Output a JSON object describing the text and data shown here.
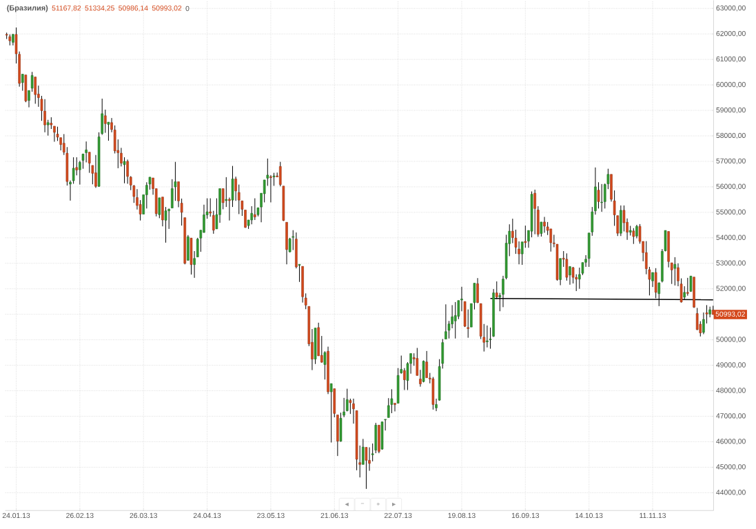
{
  "chart_data": {
    "type": "candlestick",
    "title": "(Бразилия)",
    "annotations": [
      "51167,82",
      "51334,25",
      "50986,14",
      "50993,02",
      "0",
      "50993,02",
      "◄",
      "−",
      "+",
      "►"
    ],
    "categories": [
      null,
      null,
      null,
      "24.01.13",
      null,
      null,
      null,
      null,
      null,
      null,
      null,
      null,
      null,
      null,
      null,
      null,
      null,
      null,
      null,
      null,
      null,
      null,
      null,
      "26.02.13",
      null,
      null,
      null,
      null,
      null,
      null,
      null,
      null,
      null,
      null,
      null,
      null,
      null,
      null,
      null,
      null,
      null,
      null,
      null,
      "26.03.13",
      null,
      null,
      null,
      null,
      null,
      null,
      null,
      null,
      null,
      null,
      null,
      null,
      null,
      null,
      null,
      null,
      null,
      null,
      null,
      "24.04.13",
      null,
      null,
      null,
      null,
      null,
      null,
      null,
      null,
      null,
      null,
      null,
      null,
      null,
      null,
      null,
      null,
      null,
      null,
      null,
      "23.05.13",
      null,
      null,
      null,
      null,
      null,
      null,
      null,
      null,
      null,
      null,
      null,
      null,
      null,
      null,
      null,
      null,
      null,
      null,
      null,
      "21.06.13",
      null,
      null,
      null,
      null,
      null,
      null,
      null,
      null,
      null,
      null,
      null,
      null,
      null,
      null,
      null,
      null,
      null,
      null,
      null,
      "22.07.13",
      null,
      null,
      null,
      null,
      null,
      null,
      null,
      null,
      null,
      null,
      null,
      null,
      null,
      null,
      null,
      null,
      null,
      null,
      null,
      "19.08.13",
      null,
      null,
      null,
      null,
      null,
      null,
      null,
      null,
      null,
      null,
      null,
      null,
      null,
      null,
      null,
      null,
      null,
      null,
      null,
      "16.09.13",
      null,
      null,
      null,
      null,
      null,
      null,
      null,
      null,
      null,
      null,
      null,
      null,
      null,
      null,
      null,
      null,
      null,
      null,
      null,
      "14.10.13",
      null,
      null,
      null,
      null,
      null,
      null,
      null,
      null,
      null,
      null,
      null,
      null,
      null,
      null,
      null,
      null,
      null,
      null,
      null,
      "11.11.13",
      null,
      null,
      null,
      null,
      null,
      null,
      null,
      null,
      null,
      null,
      null,
      null,
      null,
      null,
      null,
      null,
      null,
      null,
      null
    ],
    "ohlc": [
      [
        61980,
        62050,
        61800,
        61950
      ],
      [
        61890,
        61980,
        61550,
        61730
      ],
      [
        61670,
        62000,
        61550,
        61980
      ],
      [
        61980,
        62250,
        60840,
        61220
      ],
      [
        61200,
        61310,
        59930,
        60060
      ],
      [
        60090,
        60420,
        59770,
        60420
      ],
      [
        60390,
        60390,
        59320,
        59370
      ],
      [
        59390,
        59780,
        59120,
        59780
      ],
      [
        59870,
        60510,
        59730,
        60370
      ],
      [
        60310,
        60310,
        59260,
        59620
      ],
      [
        59640,
        59970,
        59140,
        59500
      ],
      [
        59440,
        59570,
        58590,
        58990
      ],
      [
        58970,
        59440,
        58140,
        58430
      ],
      [
        58430,
        58630,
        58010,
        58520
      ],
      [
        58500,
        58730,
        58270,
        58430
      ],
      [
        58380,
        58380,
        57770,
        58140
      ],
      [
        58070,
        58360,
        57800,
        57950
      ],
      [
        57930,
        57930,
        57430,
        57660
      ],
      [
        57710,
        58070,
        57250,
        57360
      ],
      [
        57320,
        57560,
        56050,
        56210
      ],
      [
        56110,
        56250,
        55460,
        56180
      ],
      [
        56240,
        57160,
        56120,
        56730
      ],
      [
        56760,
        57160,
        56450,
        56660
      ],
      [
        56670,
        57020,
        56090,
        56960
      ],
      [
        57040,
        57290,
        56710,
        57290
      ],
      [
        57340,
        57780,
        56960,
        57450
      ],
      [
        57360,
        57360,
        56550,
        56930
      ],
      [
        56840,
        56840,
        56100,
        56530
      ],
      [
        56550,
        57250,
        55960,
        56020
      ],
      [
        56020,
        58140,
        56000,
        57960
      ],
      [
        58090,
        59460,
        58040,
        58870
      ],
      [
        58790,
        59030,
        58120,
        58480
      ],
      [
        58450,
        58540,
        57810,
        58540
      ],
      [
        58520,
        58700,
        58140,
        58250
      ],
      [
        58230,
        58410,
        57310,
        57410
      ],
      [
        57430,
        57860,
        56730,
        57340
      ],
      [
        57320,
        57530,
        56800,
        56930
      ],
      [
        56870,
        57160,
        56140,
        57000
      ],
      [
        57000,
        57070,
        56120,
        56410
      ],
      [
        56380,
        56420,
        55870,
        56070
      ],
      [
        56040,
        56070,
        55370,
        55620
      ],
      [
        55580,
        55910,
        55110,
        55270
      ],
      [
        55310,
        55480,
        54680,
        54930
      ],
      [
        54930,
        55690,
        54930,
        55690
      ],
      [
        55690,
        56180,
        55150,
        56060
      ],
      [
        56110,
        56380,
        55890,
        56380
      ],
      [
        56350,
        56350,
        55690,
        55930
      ],
      [
        55930,
        55930,
        54840,
        54950
      ],
      [
        54910,
        55570,
        54770,
        55570
      ],
      [
        55600,
        55600,
        54450,
        54700
      ],
      [
        54690,
        55210,
        53810,
        55060
      ],
      [
        55060,
        55150,
        54350,
        55120
      ],
      [
        55170,
        56300,
        55170,
        55930
      ],
      [
        56000,
        56980,
        55450,
        56200
      ],
      [
        56200,
        56200,
        55200,
        55450
      ],
      [
        55360,
        55540,
        54480,
        55000
      ],
      [
        54790,
        54790,
        52960,
        53000
      ],
      [
        53120,
        54110,
        53100,
        54040
      ],
      [
        53990,
        53990,
        52560,
        52950
      ],
      [
        52950,
        53480,
        52430,
        53190
      ],
      [
        53250,
        54000,
        53250,
        53950
      ],
      [
        53990,
        54300,
        53450,
        54300
      ],
      [
        54210,
        55300,
        54200,
        54900
      ],
      [
        54900,
        55550,
        54750,
        55020
      ],
      [
        55020,
        55550,
        54830,
        54970
      ],
      [
        54880,
        55060,
        54160,
        54300
      ],
      [
        54350,
        55550,
        54350,
        54910
      ],
      [
        54910,
        55930,
        54590,
        55930
      ],
      [
        55930,
        55930,
        55120,
        55380
      ],
      [
        55460,
        56380,
        55210,
        55510
      ],
      [
        55510,
        55580,
        54680,
        55460
      ],
      [
        55480,
        56820,
        55210,
        56310
      ],
      [
        56310,
        56400,
        55450,
        55840
      ],
      [
        55780,
        56090,
        54930,
        55480
      ],
      [
        55450,
        55450,
        54860,
        55120
      ],
      [
        55090,
        55090,
        54390,
        54410
      ],
      [
        54480,
        54700,
        54350,
        54700
      ],
      [
        54700,
        55240,
        54530,
        54960
      ],
      [
        54910,
        55550,
        54700,
        54820
      ],
      [
        54910,
        55180,
        54840,
        55180
      ],
      [
        55210,
        55750,
        54610,
        55750
      ],
      [
        55730,
        56270,
        55390,
        56270
      ],
      [
        56340,
        57110,
        56040,
        56460
      ],
      [
        56400,
        56460,
        55390,
        56360
      ],
      [
        56390,
        56550,
        56040,
        56430
      ],
      [
        56430,
        56560,
        56390,
        56390
      ],
      [
        56800,
        56980,
        56020,
        56090
      ],
      [
        56030,
        56030,
        54660,
        54680
      ],
      [
        54610,
        54610,
        52960,
        53540
      ],
      [
        53450,
        54000,
        53430,
        53960
      ],
      [
        54020,
        54300,
        53520,
        54050
      ],
      [
        53950,
        54210,
        52800,
        52860
      ],
      [
        52920,
        52960,
        52270,
        52960
      ],
      [
        52880,
        52880,
        51460,
        51690
      ],
      [
        51640,
        51820,
        51200,
        51360
      ],
      [
        51310,
        51310,
        49750,
        49840
      ],
      [
        49900,
        50420,
        48810,
        49240
      ],
      [
        49240,
        50460,
        49050,
        50460
      ],
      [
        50480,
        50670,
        49370,
        49370
      ],
      [
        49390,
        50150,
        49100,
        49120
      ],
      [
        49030,
        49550,
        48440,
        49500
      ],
      [
        49550,
        49730,
        47870,
        47960
      ],
      [
        47960,
        48280,
        45970,
        48280
      ],
      [
        48080,
        48080,
        46960,
        47110
      ],
      [
        47050,
        47050,
        45440,
        46020
      ],
      [
        46020,
        47140,
        46000,
        46920
      ],
      [
        47040,
        47720,
        46960,
        47170
      ],
      [
        47220,
        48080,
        47190,
        47650
      ],
      [
        47620,
        47690,
        47090,
        47530
      ],
      [
        47490,
        47690,
        46710,
        47290
      ],
      [
        47220,
        47220,
        44880,
        45310
      ],
      [
        45180,
        45850,
        44600,
        45110
      ],
      [
        45110,
        46110,
        45110,
        45790
      ],
      [
        45780,
        45780,
        44150,
        45270
      ],
      [
        45270,
        45780,
        44860,
        45150
      ],
      [
        45490,
        45930,
        45230,
        45530
      ],
      [
        45670,
        46740,
        45550,
        46650
      ],
      [
        46650,
        46650,
        45550,
        45620
      ],
      [
        45710,
        46780,
        45690,
        46780
      ],
      [
        46860,
        46880,
        46440,
        46880
      ],
      [
        46950,
        47710,
        46950,
        47420
      ],
      [
        47460,
        48060,
        47120,
        47690
      ],
      [
        47510,
        47510,
        47190,
        47460
      ],
      [
        47510,
        48890,
        47510,
        48600
      ],
      [
        48700,
        49380,
        48670,
        48840
      ],
      [
        48790,
        48890,
        48030,
        48430
      ],
      [
        48400,
        49120,
        48030,
        49070
      ],
      [
        49070,
        49460,
        48670,
        49460
      ],
      [
        49300,
        49470,
        48980,
        49250
      ],
      [
        49270,
        49680,
        48600,
        48600
      ],
      [
        48460,
        48820,
        48160,
        48270
      ],
      [
        48360,
        49190,
        48330,
        49160
      ],
      [
        49130,
        49560,
        48510,
        48510
      ],
      [
        48500,
        48700,
        48290,
        48460
      ],
      [
        48470,
        48540,
        47260,
        47460
      ],
      [
        47330,
        47690,
        47200,
        47460
      ],
      [
        47630,
        49240,
        47610,
        48950
      ],
      [
        49070,
        50030,
        48870,
        49890
      ],
      [
        50030,
        51390,
        50030,
        50320
      ],
      [
        50370,
        50740,
        50050,
        50620
      ],
      [
        50620,
        51360,
        50450,
        50900
      ],
      [
        50740,
        51480,
        50050,
        50950
      ],
      [
        50920,
        51540,
        50810,
        51540
      ],
      [
        51560,
        52080,
        51120,
        51600
      ],
      [
        51500,
        51500,
        50500,
        50530
      ],
      [
        50480,
        51190,
        50080,
        50440
      ],
      [
        50500,
        51420,
        50500,
        51420
      ],
      [
        51460,
        52220,
        51190,
        52220
      ],
      [
        52200,
        52420,
        51440,
        51460
      ],
      [
        51420,
        51420,
        50030,
        50140
      ],
      [
        50100,
        50620,
        49540,
        49900
      ],
      [
        49920,
        50560,
        49700,
        49960
      ],
      [
        50000,
        50480,
        49650,
        50030
      ],
      [
        50140,
        51990,
        50110,
        51840
      ],
      [
        51840,
        52290,
        51600,
        51680
      ],
      [
        51680,
        51840,
        51120,
        51740
      ],
      [
        51780,
        52510,
        51280,
        52380
      ],
      [
        52430,
        54120,
        52370,
        53790
      ],
      [
        53770,
        54530,
        53280,
        54260
      ],
      [
        54260,
        54750,
        53790,
        54010
      ],
      [
        53990,
        54320,
        53370,
        53630
      ],
      [
        53560,
        53860,
        52960,
        53370
      ],
      [
        53370,
        53840,
        52940,
        53840
      ],
      [
        53860,
        54480,
        53610,
        53810
      ],
      [
        53870,
        54290,
        53610,
        54290
      ],
      [
        54260,
        55820,
        54020,
        55710
      ],
      [
        55750,
        55890,
        54140,
        55150
      ],
      [
        55090,
        55240,
        54040,
        54140
      ],
      [
        54170,
        54620,
        54050,
        54620
      ],
      [
        54620,
        54820,
        54200,
        54460
      ],
      [
        54430,
        54620,
        54110,
        54290
      ],
      [
        54350,
        54350,
        53460,
        53810
      ],
      [
        53800,
        54120,
        53630,
        53770
      ],
      [
        53750,
        53750,
        52320,
        52360
      ],
      [
        52360,
        53190,
        52140,
        53190
      ],
      [
        53200,
        53480,
        52860,
        53160
      ],
      [
        53160,
        53390,
        52320,
        52450
      ],
      [
        52540,
        52890,
        52160,
        52870
      ],
      [
        52830,
        52860,
        52210,
        52450
      ],
      [
        52450,
        52570,
        51910,
        52380
      ],
      [
        52380,
        52830,
        52000,
        52560
      ],
      [
        52610,
        53030,
        52540,
        53030
      ],
      [
        53040,
        53320,
        52860,
        53160
      ],
      [
        53190,
        54190,
        52860,
        54190
      ],
      [
        54230,
        55210,
        54080,
        55020
      ],
      [
        55060,
        56760,
        54910,
        56000
      ],
      [
        55870,
        56180,
        55150,
        55420
      ],
      [
        55380,
        56110,
        55020,
        55400
      ],
      [
        55420,
        56130,
        55150,
        56090
      ],
      [
        56120,
        56710,
        55910,
        56490
      ],
      [
        56490,
        56490,
        55420,
        55510
      ],
      [
        55450,
        55860,
        54470,
        54900
      ],
      [
        54870,
        54870,
        54070,
        54180
      ],
      [
        54180,
        55270,
        54070,
        55080
      ],
      [
        55080,
        55270,
        54250,
        54590
      ],
      [
        54610,
        54760,
        53920,
        54220
      ],
      [
        54220,
        54470,
        54090,
        54290
      ],
      [
        54270,
        54380,
        53760,
        54050
      ],
      [
        54070,
        54510,
        53980,
        54450
      ],
      [
        54450,
        54540,
        53770,
        53860
      ],
      [
        53860,
        53860,
        53080,
        53420
      ],
      [
        53420,
        53870,
        52570,
        52790
      ],
      [
        52750,
        52860,
        51740,
        52370
      ],
      [
        52310,
        52640,
        52070,
        52640
      ],
      [
        52640,
        52810,
        51630,
        51860
      ],
      [
        51810,
        52250,
        51320,
        52230
      ],
      [
        52300,
        53560,
        52250,
        53470
      ],
      [
        53490,
        54290,
        53470,
        54290
      ],
      [
        54250,
        54250,
        52840,
        53070
      ],
      [
        53020,
        53020,
        52190,
        52740
      ],
      [
        52800,
        53240,
        52130,
        52960
      ],
      [
        52830,
        53000,
        52100,
        52310
      ],
      [
        52190,
        52410,
        51460,
        51480
      ],
      [
        51670,
        52100,
        51570,
        51860
      ],
      [
        51860,
        52430,
        51730,
        51820
      ],
      [
        51900,
        52500,
        51880,
        52500
      ],
      [
        52460,
        52460,
        51250,
        51280
      ],
      [
        51030,
        51250,
        50380,
        50400
      ],
      [
        50610,
        50730,
        50130,
        50270
      ],
      [
        50290,
        51070,
        50220,
        50800
      ],
      [
        51060,
        51360,
        50640,
        51010
      ],
      [
        51010,
        51300,
        50880,
        51180
      ],
      [
        51167.82,
        51334.25,
        50986.14,
        50993.02
      ]
    ],
    "series": [
      {
        "type": "line",
        "color": "#000000",
        "values": [
          null,
          null,
          null,
          null,
          null,
          null,
          null,
          null,
          null,
          null,
          null,
          null,
          null,
          null,
          null,
          null,
          null,
          null,
          null,
          null,
          null,
          null,
          null,
          null,
          null,
          null,
          null,
          null,
          null,
          null,
          null,
          null,
          null,
          null,
          null,
          null,
          null,
          null,
          null,
          null,
          null,
          null,
          null,
          null,
          null,
          null,
          null,
          null,
          null,
          null,
          null,
          null,
          null,
          null,
          null,
          null,
          null,
          null,
          null,
          null,
          null,
          null,
          null,
          null,
          null,
          null,
          null,
          null,
          null,
          null,
          null,
          null,
          null,
          null,
          null,
          null,
          null,
          null,
          null,
          null,
          null,
          null,
          null,
          null,
          null,
          null,
          null,
          null,
          null,
          null,
          null,
          null,
          null,
          null,
          null,
          null,
          null,
          null,
          null,
          null,
          null,
          null,
          null,
          null,
          null,
          null,
          null,
          null,
          null,
          null,
          null,
          null,
          null,
          null,
          null,
          null,
          null,
          null,
          null,
          null,
          null,
          null,
          null,
          null,
          null,
          null,
          null,
          null,
          null,
          null,
          null,
          null,
          null,
          null,
          null,
          null,
          null,
          null,
          null,
          null,
          null,
          null,
          null,
          null,
          null,
          null,
          null,
          null,
          null,
          null,
          null,
          null,
          51620,
          null,
          null,
          null,
          null,
          null,
          null,
          null,
          null,
          null,
          null,
          null,
          null,
          null,
          null,
          null,
          null,
          null,
          null,
          null,
          null,
          null,
          null,
          null,
          null,
          null,
          null,
          null,
          null,
          null,
          null,
          null,
          null,
          null,
          null,
          null,
          null,
          null,
          null,
          null,
          null,
          null,
          null,
          null,
          null,
          null,
          null,
          null,
          null,
          null,
          null,
          null,
          null,
          null,
          null,
          null,
          null,
          null,
          null,
          null,
          null,
          null,
          null,
          null,
          null,
          null,
          null,
          null,
          null,
          null,
          51570
        ]
      }
    ],
    "ylim": [
      43300,
      63320
    ],
    "yticks": [
      {
        "value": 44000,
        "label": "44000,00"
      },
      {
        "value": 45000,
        "label": "45000,00"
      },
      {
        "value": 46000,
        "label": "46000,00"
      },
      {
        "value": 47000,
        "label": "47000,00"
      },
      {
        "value": 48000,
        "label": "48000,00"
      },
      {
        "value": 49000,
        "label": "49000,00"
      },
      {
        "value": 50000,
        "label": "50000,00"
      },
      {
        "value": 51000,
        "label": null
      },
      {
        "value": 52000,
        "label": "52000,00"
      },
      {
        "value": 53000,
        "label": "53000,00"
      },
      {
        "value": 54000,
        "label": "54000,00"
      },
      {
        "value": 55000,
        "label": "55000,00"
      },
      {
        "value": 56000,
        "label": "56000,00"
      },
      {
        "value": 57000,
        "label": "57000,00"
      },
      {
        "value": 58000,
        "label": "58000,00"
      },
      {
        "value": 59000,
        "label": "59000,00"
      },
      {
        "value": 60000,
        "label": "60000,00"
      },
      {
        "value": 61000,
        "label": "61000,00"
      },
      {
        "value": 62000,
        "label": "62000,00"
      },
      {
        "value": 63000,
        "label": "63000,00"
      }
    ],
    "grid": true
  }
}
